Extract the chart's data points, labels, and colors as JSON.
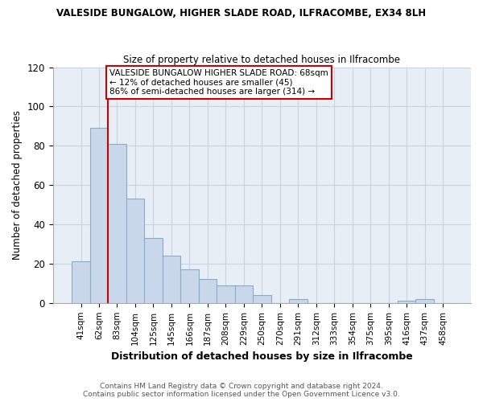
{
  "title": "VALESIDE BUNGALOW, HIGHER SLADE ROAD, ILFRACOMBE, EX34 8LH",
  "subtitle": "Size of property relative to detached houses in Ilfracombe",
  "xlabel": "Distribution of detached houses by size in Ilfracombe",
  "ylabel": "Number of detached properties",
  "bar_labels": [
    "41sqm",
    "62sqm",
    "83sqm",
    "104sqm",
    "125sqm",
    "145sqm",
    "166sqm",
    "187sqm",
    "208sqm",
    "229sqm",
    "250sqm",
    "270sqm",
    "291sqm",
    "312sqm",
    "333sqm",
    "354sqm",
    "375sqm",
    "395sqm",
    "416sqm",
    "437sqm",
    "458sqm"
  ],
  "bar_values": [
    21,
    89,
    81,
    53,
    33,
    24,
    17,
    12,
    9,
    9,
    4,
    0,
    2,
    0,
    0,
    0,
    0,
    0,
    1,
    2,
    0
  ],
  "bar_color": "#c8d8ea",
  "bar_edge_color": "#88aacc",
  "plot_bg_color": "#e8eef5",
  "ylim": [
    0,
    120
  ],
  "yticks": [
    0,
    20,
    40,
    60,
    80,
    100,
    120
  ],
  "marker_color": "#cc0000",
  "annotation_title": "VALESIDE BUNGALOW HIGHER SLADE ROAD: 68sqm",
  "annotation_line1": "← 12% of detached houses are smaller (45)",
  "annotation_line2": "86% of semi-detached houses are larger (314) →",
  "footer_line1": "Contains HM Land Registry data © Crown copyright and database right 2024.",
  "footer_line2": "Contains public sector information licensed under the Open Government Licence v3.0.",
  "grid_color": "#c8d4e0",
  "fig_bg_color": "#ffffff"
}
